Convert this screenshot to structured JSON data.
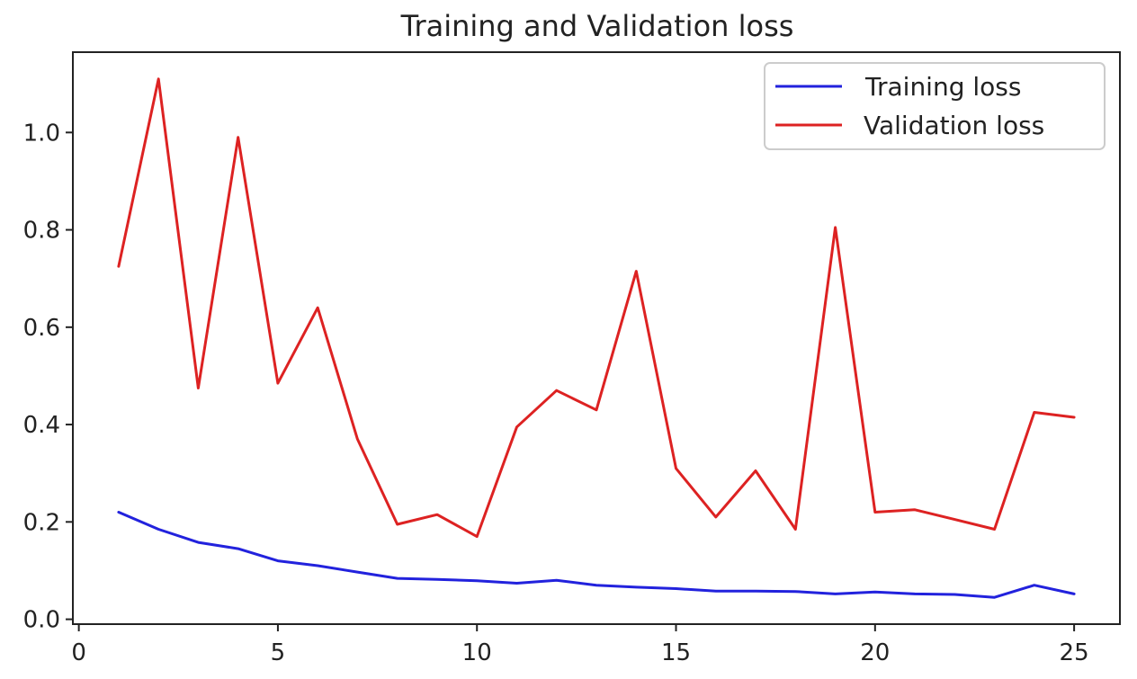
{
  "chart_data": {
    "type": "line",
    "title": "Training and Validation loss",
    "xlabel": "",
    "ylabel": "",
    "xlim": [
      -0.15,
      26.15
    ],
    "ylim": [
      -0.01,
      1.165
    ],
    "grid": false,
    "legend_position": "top-right",
    "x_ticks": [
      0,
      5,
      10,
      15,
      20,
      25
    ],
    "y_ticks": [
      0.0,
      0.2,
      0.4,
      0.6,
      0.8,
      1.0
    ],
    "x_tick_labels": [
      "0",
      "5",
      "10",
      "15",
      "20",
      "25"
    ],
    "y_tick_labels": [
      "0.0",
      "0.2",
      "0.4",
      "0.6",
      "0.8",
      "1.0"
    ],
    "x": [
      1,
      2,
      3,
      4,
      5,
      6,
      7,
      8,
      9,
      10,
      11,
      12,
      13,
      14,
      15,
      16,
      17,
      18,
      19,
      20,
      21,
      22,
      23,
      24,
      25
    ],
    "series": [
      {
        "name": "Training loss",
        "color": "#2222dd",
        "values": [
          0.22,
          0.185,
          0.158,
          0.145,
          0.12,
          0.11,
          0.097,
          0.084,
          0.082,
          0.079,
          0.074,
          0.08,
          0.07,
          0.066,
          0.063,
          0.058,
          0.058,
          0.057,
          0.052,
          0.056,
          0.052,
          0.051,
          0.045,
          0.07,
          0.052
        ]
      },
      {
        "name": "Validation loss",
        "color": "#dd2222",
        "values": [
          0.725,
          1.11,
          0.475,
          0.99,
          0.485,
          0.64,
          0.37,
          0.195,
          0.215,
          0.17,
          0.395,
          0.47,
          0.43,
          0.715,
          0.31,
          0.21,
          0.305,
          0.185,
          0.805,
          0.22,
          0.225,
          0.205,
          0.185,
          0.425,
          0.415
        ]
      }
    ]
  }
}
